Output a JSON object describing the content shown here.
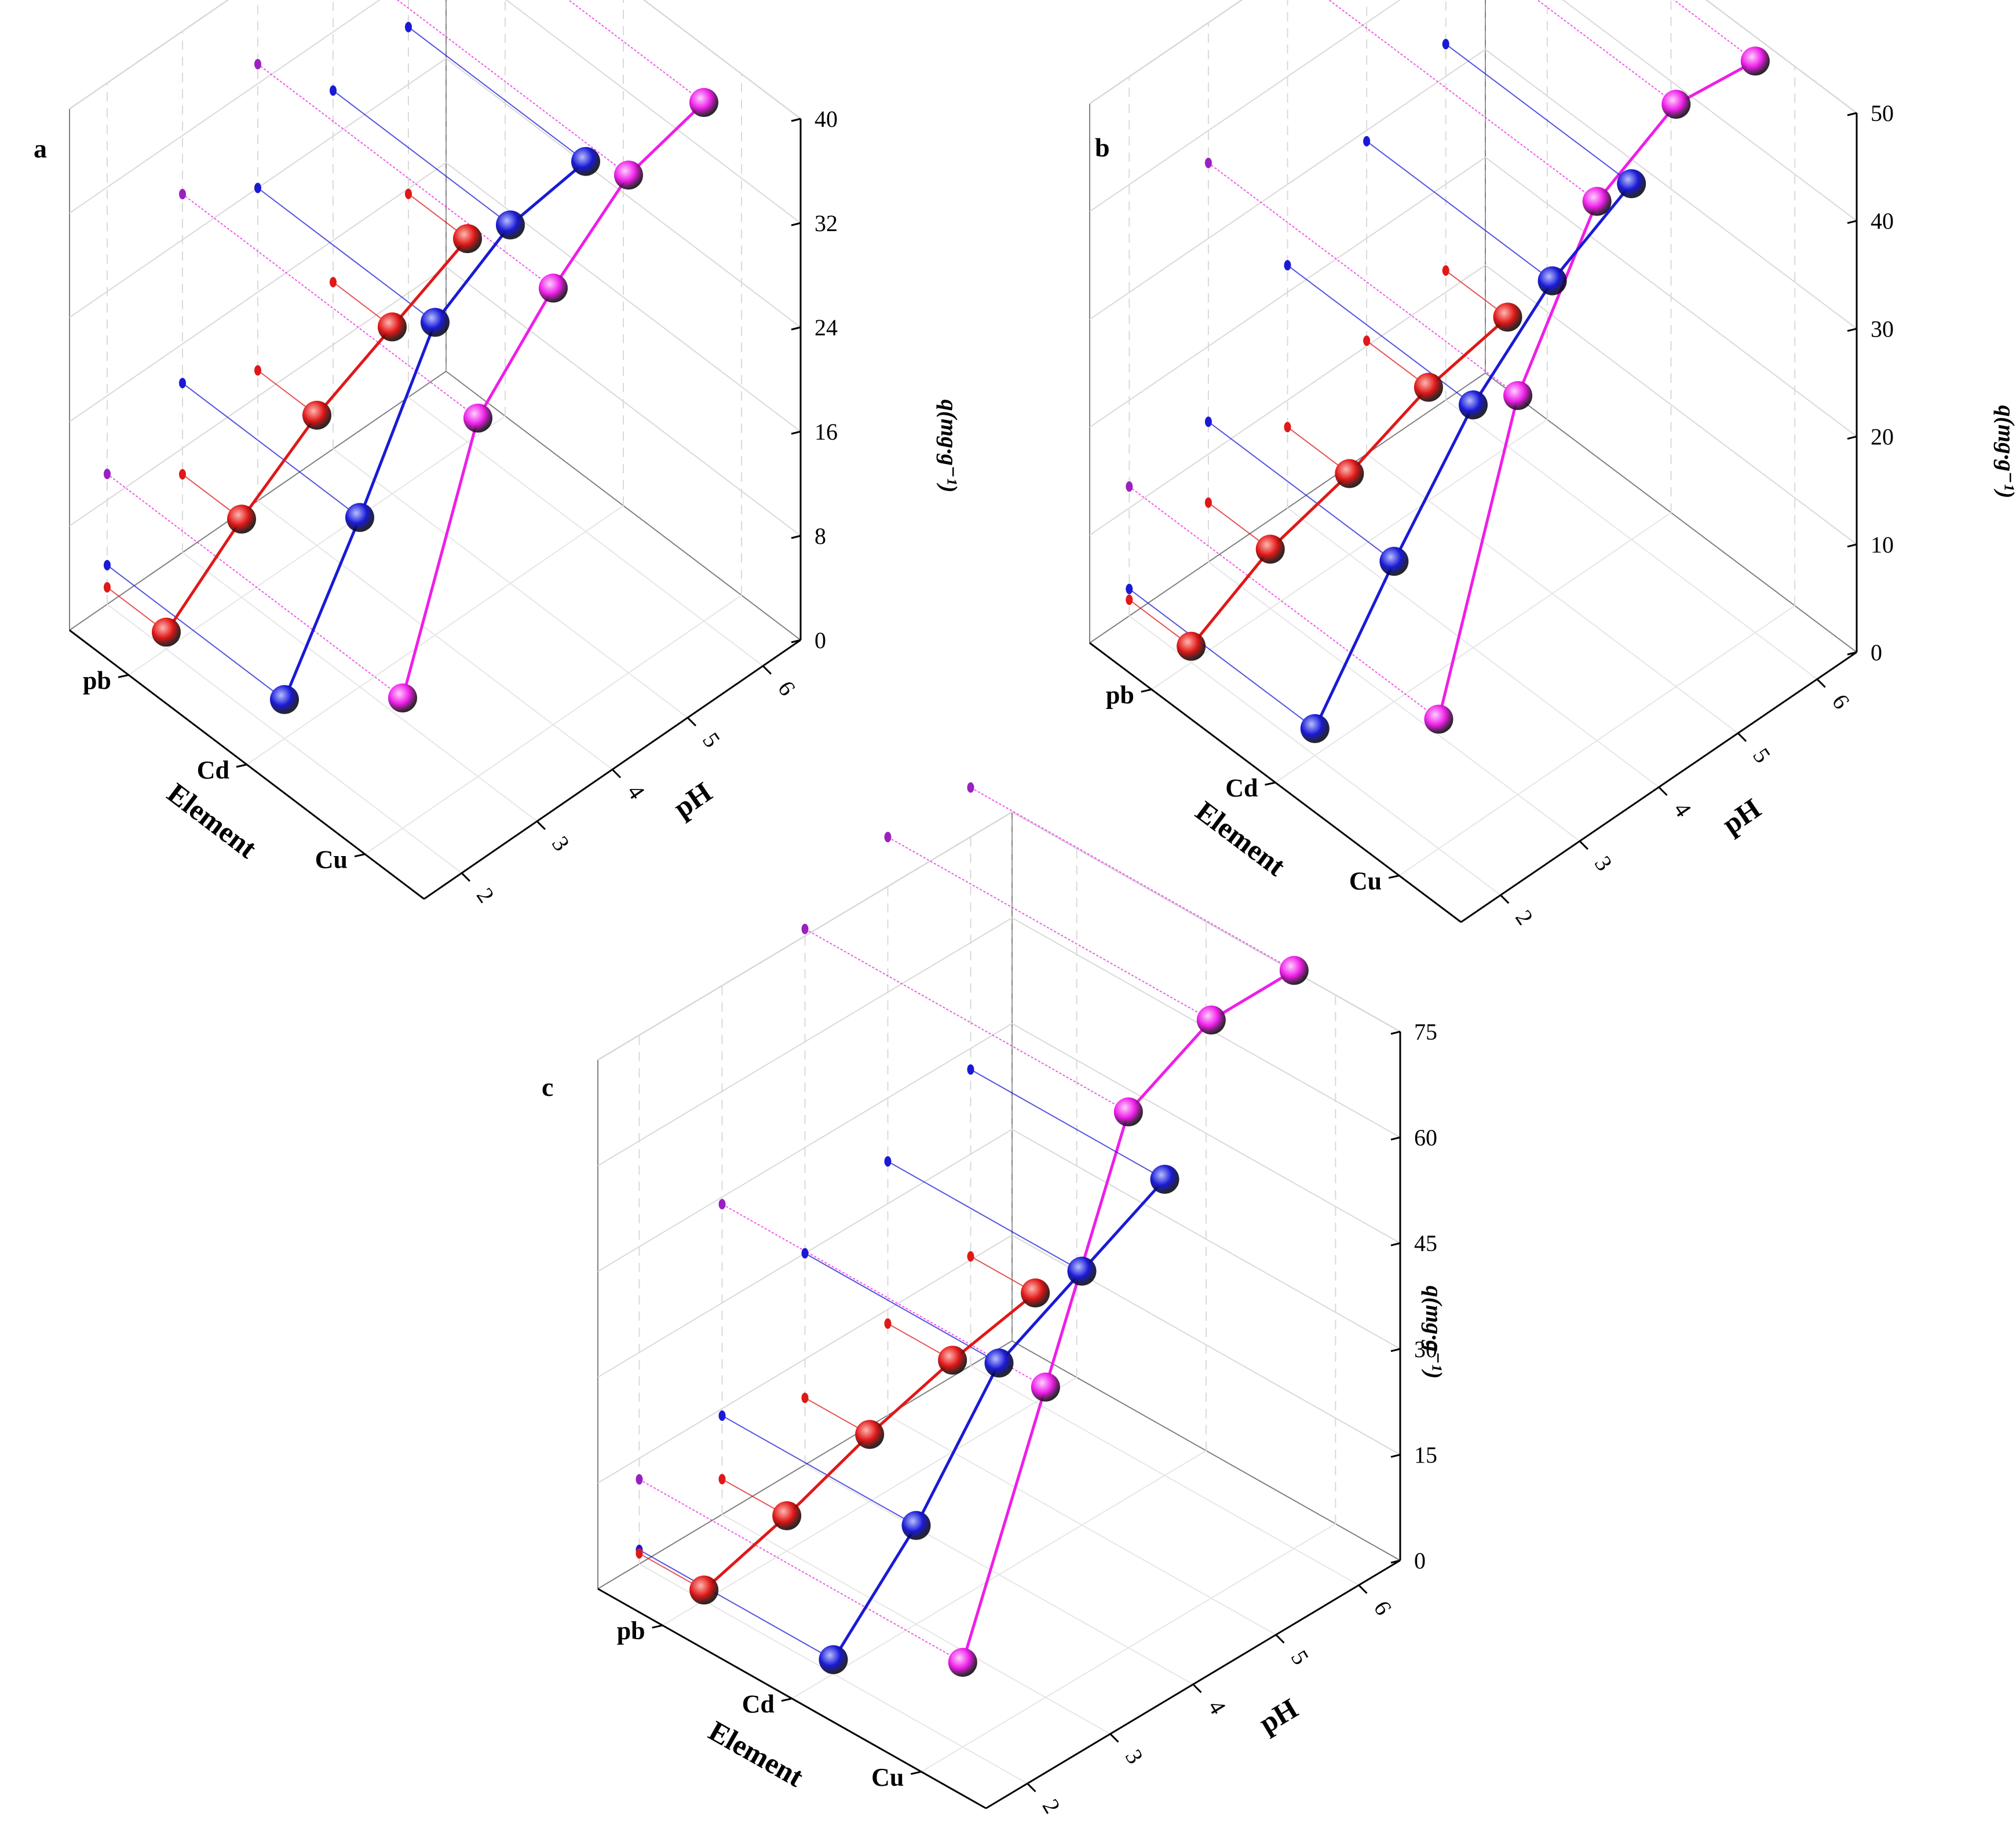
{
  "figure": {
    "element_axis_title": "Element",
    "ph_axis_title": "pH",
    "z_axis_title": "q(mg·g⁻¹)",
    "categories": [
      "Cu",
      "Cd",
      "pb"
    ],
    "ph_ticks": [
      "2",
      "3",
      "4",
      "5",
      "6"
    ],
    "colors": {
      "Cu": "#ee1ee8",
      "Cd": "#1a1ad6",
      "pb": "#e01818",
      "Cu_dark": "#9a20c0"
    }
  },
  "chart_data": [
    {
      "type": "line3d",
      "panel": "a",
      "x": [
        2,
        3,
        4,
        5,
        6
      ],
      "z_ticks": [
        "0",
        "8",
        "16",
        "24",
        "32",
        "40"
      ],
      "zlim": [
        0,
        40
      ],
      "series": [
        {
          "name": "Cu",
          "values": [
            10.0,
            27.5,
            33.5,
            38.2,
            39.8
          ]
        },
        {
          "name": "Cd",
          "values": [
            3.0,
            13.0,
            24.0,
            27.5,
            28.4
          ]
        },
        {
          "name": "pb",
          "values": [
            1.3,
            6.0,
            10.0,
            12.8,
            15.6
          ]
        }
      ]
    },
    {
      "type": "line3d",
      "panel": "b",
      "x": [
        2,
        3,
        4,
        5,
        6
      ],
      "z_ticks": [
        "0",
        "10",
        "20",
        "30",
        "40",
        "50"
      ],
      "zlim": [
        0,
        50
      ],
      "series": [
        {
          "name": "Cu",
          "values": [
            12.0,
            37.0,
            50.0,
            54.0,
            53.0
          ]
        },
        {
          "name": "Cd",
          "values": [
            2.5,
            13.0,
            22.5,
            29.0,
            33.0
          ]
        },
        {
          "name": "pb",
          "values": [
            1.5,
            5.5,
            7.5,
            10.5,
            12.0
          ]
        }
      ]
    },
    {
      "type": "line3d",
      "panel": "c",
      "x": [
        2,
        3,
        4,
        5,
        6
      ],
      "z_ticks": [
        "0",
        "15",
        "30",
        "45",
        "60",
        "75"
      ],
      "zlim": [
        0,
        75
      ],
      "series": [
        {
          "name": "Cu",
          "values": [
            12.0,
            44.0,
            76.0,
            82.0,
            82.0
          ]
        },
        {
          "name": "Cd",
          "values": [
            2.0,
            14.0,
            30.0,
            36.0,
            42.0
          ]
        },
        {
          "name": "pb",
          "values": [
            1.5,
            5.0,
            9.5,
            13.0,
            15.5
          ]
        }
      ]
    }
  ]
}
